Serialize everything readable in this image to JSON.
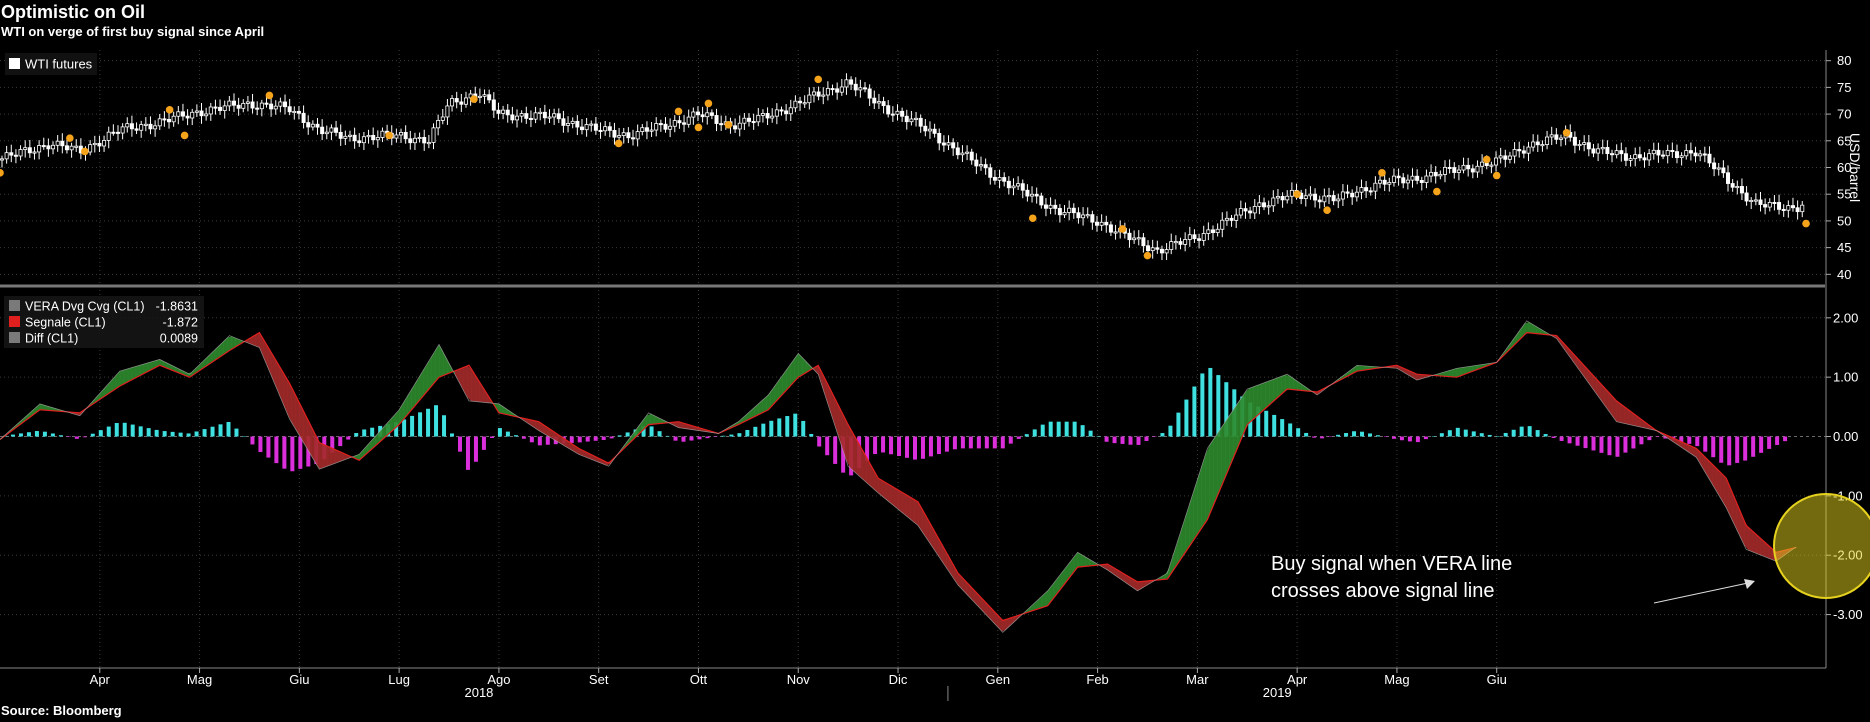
{
  "title": "Optimistic on Oil",
  "subtitle": "WTI on verge of first buy signal since April",
  "source": "Source: Bloomberg",
  "colors": {
    "background": "#000000",
    "candle": "#ffffff",
    "signal_dot": "#f5a31a",
    "vera_up": "#2e8b2e",
    "vera_down": "#a42a2a",
    "hist_pos": "#3fe0e0",
    "hist_neg": "#dc2fdc",
    "highlight": "#e6d21e"
  },
  "chart_data": [
    {
      "type": "candlestick",
      "legend": [
        "WTI futures"
      ],
      "legend_position": "top-left",
      "ylabel": "USD/barrel",
      "ylim": [
        38,
        82
      ],
      "yticks": [
        40,
        45,
        50,
        55,
        60,
        65,
        70,
        75,
        80
      ],
      "xlim": [
        0,
        18.3
      ],
      "grid": true,
      "months_x": [
        1,
        2,
        3,
        4,
        5,
        6,
        7,
        8,
        9,
        10,
        11,
        12,
        13,
        14,
        15,
        16,
        17,
        18
      ],
      "close_anchors": [
        [
          0,
          61.5
        ],
        [
          0.5,
          64.5
        ],
        [
          0.8,
          63
        ],
        [
          1.2,
          67
        ],
        [
          1.6,
          68.5
        ],
        [
          2,
          70.5
        ],
        [
          2.5,
          72
        ],
        [
          2.9,
          71
        ],
        [
          3.2,
          67
        ],
        [
          3.5,
          65.5
        ],
        [
          4,
          66
        ],
        [
          4.3,
          65
        ],
        [
          4.5,
          72
        ],
        [
          4.8,
          74
        ],
        [
          5,
          70
        ],
        [
          5.5,
          69.5
        ],
        [
          6,
          67
        ],
        [
          6.3,
          66
        ],
        [
          6.7,
          68
        ],
        [
          7,
          70
        ],
        [
          7.3,
          68
        ],
        [
          7.6,
          69
        ],
        [
          8,
          72
        ],
        [
          8.5,
          76
        ],
        [
          8.8,
          72
        ],
        [
          9,
          70
        ],
        [
          9.3,
          67
        ],
        [
          9.6,
          63
        ],
        [
          10,
          58
        ],
        [
          10.3,
          55
        ],
        [
          10.6,
          52
        ],
        [
          11,
          50
        ],
        [
          11.3,
          47
        ],
        [
          11.6,
          44.5
        ],
        [
          12,
          47
        ],
        [
          12.3,
          50
        ],
        [
          12.6,
          53
        ],
        [
          13,
          55
        ],
        [
          13.4,
          54
        ],
        [
          13.8,
          57
        ],
        [
          14.2,
          58
        ],
        [
          14.7,
          60
        ],
        [
          15,
          61
        ],
        [
          15.3,
          64
        ],
        [
          15.7,
          66
        ],
        [
          16,
          63
        ],
        [
          16.4,
          62
        ],
        [
          17,
          63
        ],
        [
          17.3,
          58
        ],
        [
          17.6,
          53
        ],
        [
          18,
          52.5
        ],
        [
          18.1,
          53.5
        ]
      ],
      "signal_dots": [
        [
          0,
          59
        ],
        [
          0.7,
          65.5
        ],
        [
          0.85,
          63
        ],
        [
          1.7,
          70.8
        ],
        [
          1.85,
          66
        ],
        [
          2.7,
          73.5
        ],
        [
          3.9,
          66
        ],
        [
          4.75,
          72.8
        ],
        [
          6.2,
          64.5
        ],
        [
          6.8,
          70.5
        ],
        [
          7,
          67.5
        ],
        [
          7.1,
          72
        ],
        [
          7.3,
          68
        ],
        [
          8.2,
          76.5
        ],
        [
          10.35,
          50.5
        ],
        [
          11.25,
          48.5
        ],
        [
          11.5,
          43.5
        ],
        [
          13,
          55
        ],
        [
          13.3,
          52
        ],
        [
          13.85,
          59
        ],
        [
          14.4,
          55.5
        ],
        [
          14.9,
          61.5
        ],
        [
          15,
          58.5
        ],
        [
          15.7,
          66.5
        ],
        [
          18.1,
          49.5
        ]
      ]
    },
    {
      "type": "line",
      "legend": [
        {
          "name": "VERA Dvg Cvg (CL1)",
          "value": "-1.8631",
          "color": "#7a7a7a"
        },
        {
          "name": "Segnale (CL1)",
          "value": "-1.872",
          "color": "#e0201e"
        },
        {
          "name": "Diff (CL1)",
          "value": "0.0089",
          "color": "#7a7a7a"
        }
      ],
      "legend_position": "top-left",
      "ylim": [
        -3.9,
        2.3
      ],
      "yticks": [
        -3,
        -2,
        -1,
        0,
        1,
        2
      ],
      "ytick_labels": [
        "-3.00",
        "-2.00",
        "-1.00",
        "0.00",
        "1.00",
        "2.00"
      ],
      "xlim": [
        0,
        18.3
      ],
      "grid": true,
      "vera": [
        [
          0,
          -0.05
        ],
        [
          0.4,
          0.55
        ],
        [
          0.8,
          0.35
        ],
        [
          1.2,
          1.1
        ],
        [
          1.6,
          1.3
        ],
        [
          1.9,
          1.05
        ],
        [
          2.3,
          1.7
        ],
        [
          2.6,
          1.5
        ],
        [
          2.9,
          0.3
        ],
        [
          3.2,
          -0.55
        ],
        [
          3.6,
          -0.3
        ],
        [
          4,
          0.45
        ],
        [
          4.4,
          1.55
        ],
        [
          4.7,
          0.6
        ],
        [
          5,
          0.55
        ],
        [
          5.4,
          0.1
        ],
        [
          5.8,
          -0.3
        ],
        [
          6.1,
          -0.5
        ],
        [
          6.5,
          0.4
        ],
        [
          6.8,
          0.15
        ],
        [
          7.2,
          0.05
        ],
        [
          7.4,
          0.25
        ],
        [
          7.7,
          0.7
        ],
        [
          8,
          1.4
        ],
        [
          8.2,
          1.05
        ],
        [
          8.5,
          -0.5
        ],
        [
          8.8,
          -0.95
        ],
        [
          9.2,
          -1.5
        ],
        [
          9.6,
          -2.5
        ],
        [
          10.05,
          -3.3
        ],
        [
          10.5,
          -2.6
        ],
        [
          10.8,
          -1.95
        ],
        [
          11.1,
          -2.25
        ],
        [
          11.4,
          -2.6
        ],
        [
          11.7,
          -2.3
        ],
        [
          12.1,
          -0.2
        ],
        [
          12.5,
          0.8
        ],
        [
          12.9,
          1.05
        ],
        [
          13.2,
          0.7
        ],
        [
          13.6,
          1.2
        ],
        [
          14,
          1.15
        ],
        [
          14.2,
          0.95
        ],
        [
          14.6,
          1.15
        ],
        [
          15,
          1.25
        ],
        [
          15.3,
          1.95
        ],
        [
          15.6,
          1.65
        ],
        [
          16.2,
          0.25
        ],
        [
          16.6,
          0.1
        ],
        [
          17,
          -0.35
        ],
        [
          17.3,
          -1.2
        ],
        [
          17.5,
          -1.9
        ],
        [
          17.8,
          -2.1
        ],
        [
          18,
          -1.86
        ]
      ],
      "signal": [
        [
          0,
          -0.05
        ],
        [
          0.4,
          0.45
        ],
        [
          0.8,
          0.4
        ],
        [
          1.2,
          0.85
        ],
        [
          1.6,
          1.2
        ],
        [
          1.9,
          1.0
        ],
        [
          2.3,
          1.45
        ],
        [
          2.6,
          1.75
        ],
        [
          2.9,
          0.9
        ],
        [
          3.2,
          -0.1
        ],
        [
          3.6,
          -0.4
        ],
        [
          4,
          0.2
        ],
        [
          4.4,
          1.0
        ],
        [
          4.7,
          1.2
        ],
        [
          5,
          0.4
        ],
        [
          5.4,
          0.25
        ],
        [
          5.8,
          -0.2
        ],
        [
          6.1,
          -0.45
        ],
        [
          6.5,
          0.2
        ],
        [
          6.8,
          0.25
        ],
        [
          7.2,
          0.05
        ],
        [
          7.4,
          0.2
        ],
        [
          7.7,
          0.45
        ],
        [
          8,
          1.0
        ],
        [
          8.2,
          1.2
        ],
        [
          8.5,
          0.2
        ],
        [
          8.8,
          -0.7
        ],
        [
          9.2,
          -1.1
        ],
        [
          9.6,
          -2.3
        ],
        [
          10.05,
          -3.1
        ],
        [
          10.5,
          -2.85
        ],
        [
          10.8,
          -2.2
        ],
        [
          11.1,
          -2.15
        ],
        [
          11.4,
          -2.45
        ],
        [
          11.7,
          -2.4
        ],
        [
          12.1,
          -1.4
        ],
        [
          12.5,
          0.2
        ],
        [
          12.9,
          0.8
        ],
        [
          13.2,
          0.75
        ],
        [
          13.6,
          1.1
        ],
        [
          14,
          1.2
        ],
        [
          14.2,
          1.05
        ],
        [
          14.6,
          1.0
        ],
        [
          15,
          1.25
        ],
        [
          15.3,
          1.75
        ],
        [
          15.6,
          1.7
        ],
        [
          16.2,
          0.6
        ],
        [
          16.6,
          0.1
        ],
        [
          17,
          -0.2
        ],
        [
          17.3,
          -0.7
        ],
        [
          17.5,
          -1.5
        ],
        [
          17.8,
          -1.95
        ],
        [
          18,
          -1.87
        ]
      ],
      "annotation": "Buy signal when VERA line\ncrosses above signal line",
      "annotation_lines": [
        "Buy signal when VERA line",
        "crosses above signal line"
      ]
    }
  ],
  "x_axis": {
    "months": [
      "Apr",
      "Mag",
      "Giu",
      "Lug",
      "Ago",
      "Set",
      "Ott",
      "Nov",
      "Dic",
      "Gen",
      "Feb",
      "Mar",
      "Apr",
      "Mag",
      "Giu"
    ],
    "months_x": [
      1,
      2,
      3,
      4,
      5,
      6,
      7,
      8,
      9,
      10,
      11,
      12,
      13,
      14,
      15
    ],
    "years": [
      {
        "label": "2018",
        "x": 4.8
      },
      {
        "label": "2019",
        "x": 12.8
      }
    ],
    "year_divider_x": 9.5
  }
}
